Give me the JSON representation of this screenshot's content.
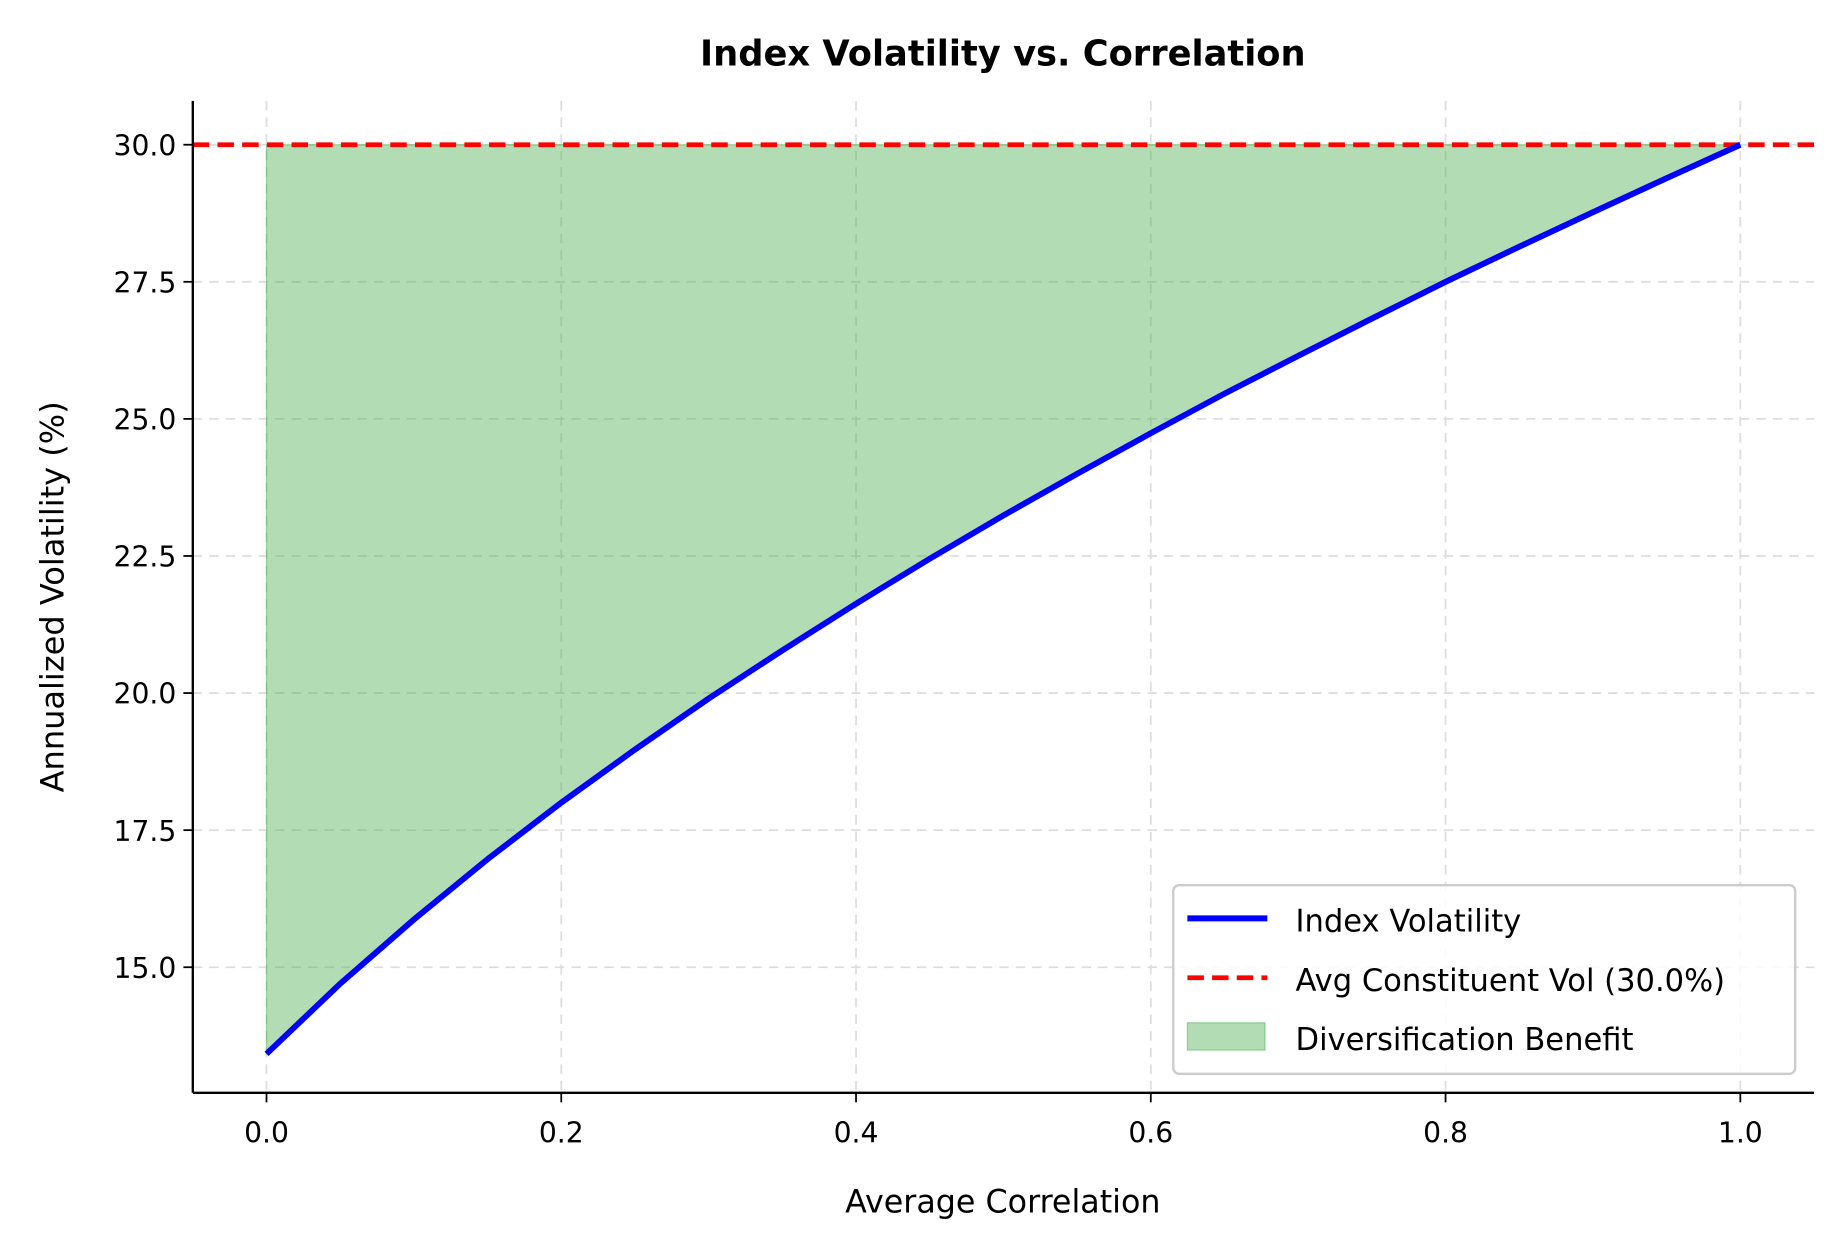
{
  "chart_data": {
    "type": "line",
    "title": "Index Volatility vs. Correlation",
    "xlabel": "Average Correlation",
    "ylabel": "Annualized Volatility (%)",
    "xlim": [
      -0.05,
      1.05
    ],
    "ylim": [
      12.71,
      30.8
    ],
    "xticks": [
      0.0,
      0.2,
      0.4,
      0.6,
      0.8,
      1.0
    ],
    "xtick_labels": [
      "0.0",
      "0.2",
      "0.4",
      "0.6",
      "0.8",
      "1.0"
    ],
    "yticks": [
      15.0,
      17.5,
      20.0,
      22.5,
      25.0,
      27.5,
      30.0
    ],
    "ytick_labels": [
      "15.0",
      "17.5",
      "20.0",
      "22.5",
      "25.0",
      "27.5",
      "30.0"
    ],
    "grid": true,
    "legend_position": "lower-right",
    "x": [
      0,
      0.05,
      0.1,
      0.15,
      0.2,
      0.25,
      0.3,
      0.35,
      0.4,
      0.45,
      0.5,
      0.55,
      0.6,
      0.65,
      0.7,
      0.75,
      0.8,
      0.85,
      0.9,
      0.95,
      1.0
    ],
    "series": [
      {
        "name": "Index Volatility",
        "color": "#0000ff",
        "style": "solid",
        "values": [
          13.42,
          14.7,
          15.87,
          16.97,
          18.0,
          18.97,
          19.9,
          20.78,
          21.63,
          22.45,
          23.24,
          24.0,
          24.74,
          25.46,
          26.15,
          26.83,
          27.5,
          28.14,
          28.77,
          29.39,
          30.0
        ]
      },
      {
        "name": "Avg Constituent Vol (30.0%)",
        "color": "#ff0000",
        "style": "dashed",
        "hline": 30.0
      },
      {
        "name": "Diversification Benefit",
        "color": "#4caf50",
        "style": "fill",
        "opacity": 0.43,
        "fill_between": [
          "Index Volatility",
          30.0
        ]
      }
    ]
  }
}
